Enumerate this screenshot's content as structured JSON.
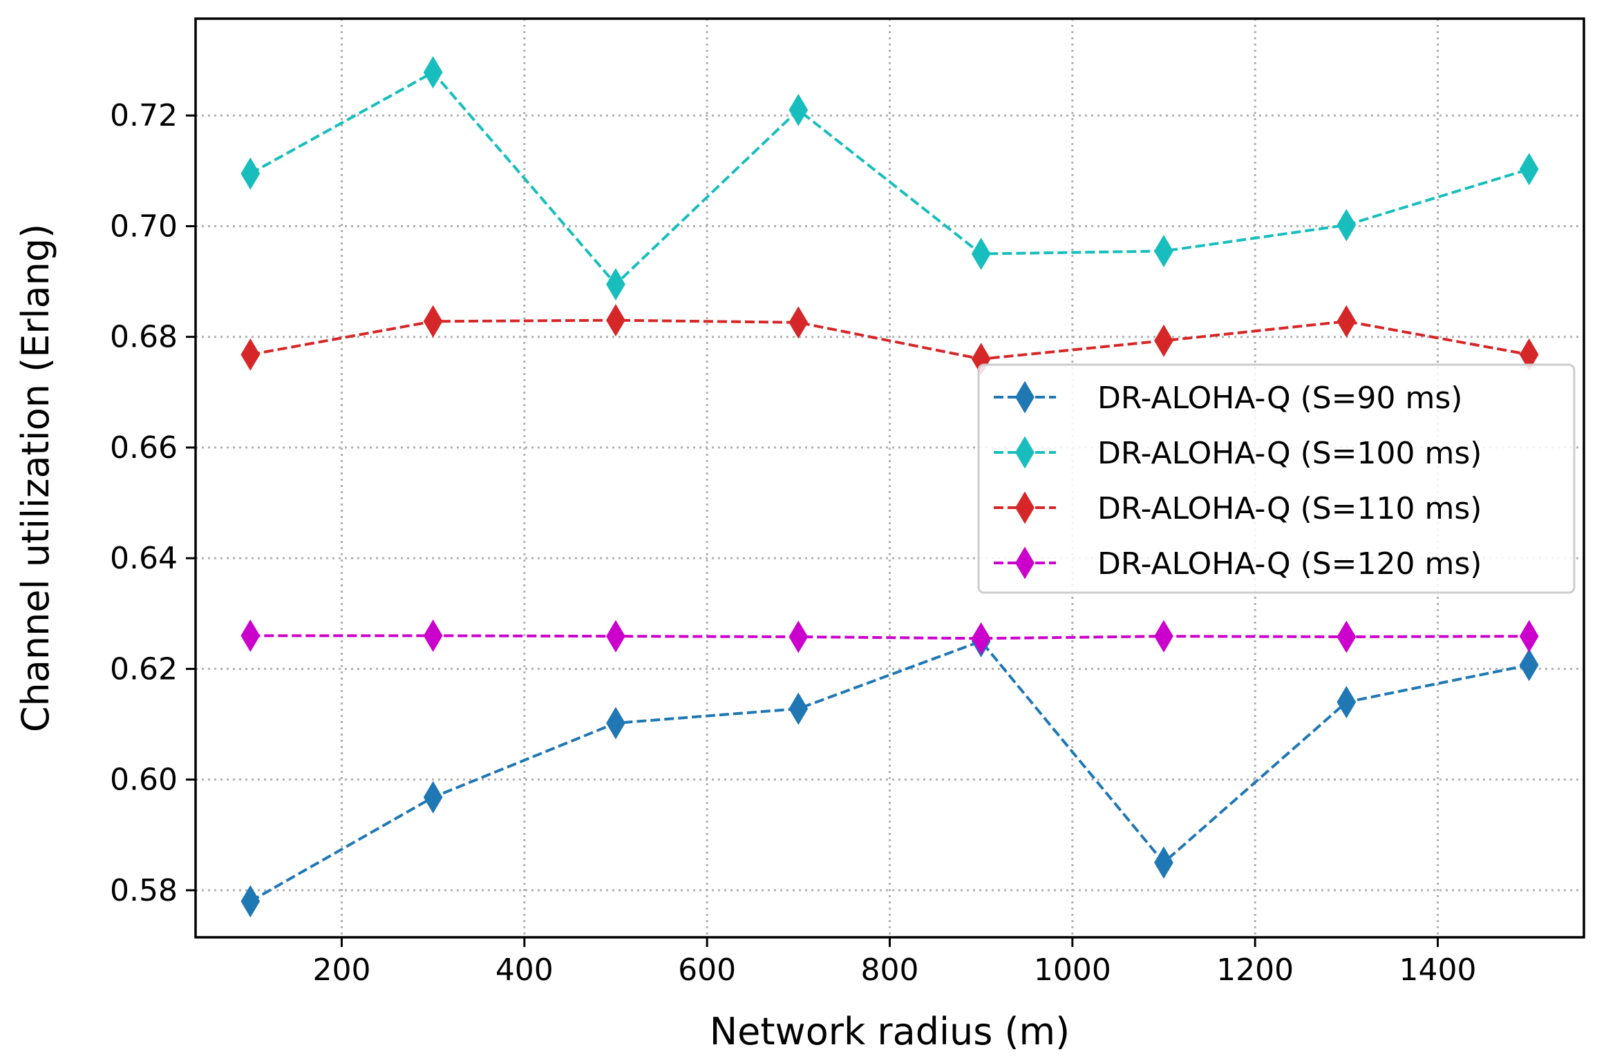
{
  "chart_data": {
    "type": "line",
    "title": "",
    "xlabel": "Network radius (m)",
    "ylabel": "Channel utilization (Erlang)",
    "x": [
      100,
      300,
      500,
      700,
      900,
      1100,
      1300,
      1500
    ],
    "xlim": [
      40,
      1560
    ],
    "ylim": [
      0.5715,
      0.7375
    ],
    "xticks": [
      200,
      400,
      600,
      800,
      1000,
      1200,
      1400
    ],
    "xtick_labels": [
      "200",
      "400",
      "600",
      "800",
      "1000",
      "1200",
      "1400"
    ],
    "yticks": [
      0.58,
      0.6,
      0.62,
      0.64,
      0.66,
      0.68,
      0.7,
      0.72
    ],
    "ytick_labels": [
      "0.58",
      "0.60",
      "0.62",
      "0.64",
      "0.66",
      "0.68",
      "0.70",
      "0.72"
    ],
    "grid": true,
    "legend_position": "center-right",
    "series": [
      {
        "name": "DR-ALOHA-Q (S=90 ms)",
        "color": "#1f77b4",
        "marker": "diamond",
        "linestyle": "dashed",
        "values": [
          0.578,
          0.5968,
          0.6102,
          0.6128,
          0.625,
          0.585,
          0.614,
          0.6207
        ]
      },
      {
        "name": "DR-ALOHA-Q (S=100 ms)",
        "color": "#17bebd",
        "marker": "diamond",
        "linestyle": "dashed",
        "values": [
          0.7095,
          0.7278,
          0.6895,
          0.721,
          0.695,
          0.6955,
          0.7002,
          0.7103
        ]
      },
      {
        "name": "DR-ALOHA-Q (S=110 ms)",
        "color": "#d62728",
        "marker": "diamond",
        "linestyle": "dashed",
        "values": [
          0.6768,
          0.6828,
          0.683,
          0.6826,
          0.676,
          0.6793,
          0.6828,
          0.6768
        ]
      },
      {
        "name": "DR-ALOHA-Q (S=120 ms)",
        "color": "#cc00cc",
        "marker": "diamond",
        "linestyle": "dashed",
        "values": [
          0.626,
          0.626,
          0.6259,
          0.6258,
          0.6255,
          0.6259,
          0.6258,
          0.6259
        ]
      }
    ]
  }
}
